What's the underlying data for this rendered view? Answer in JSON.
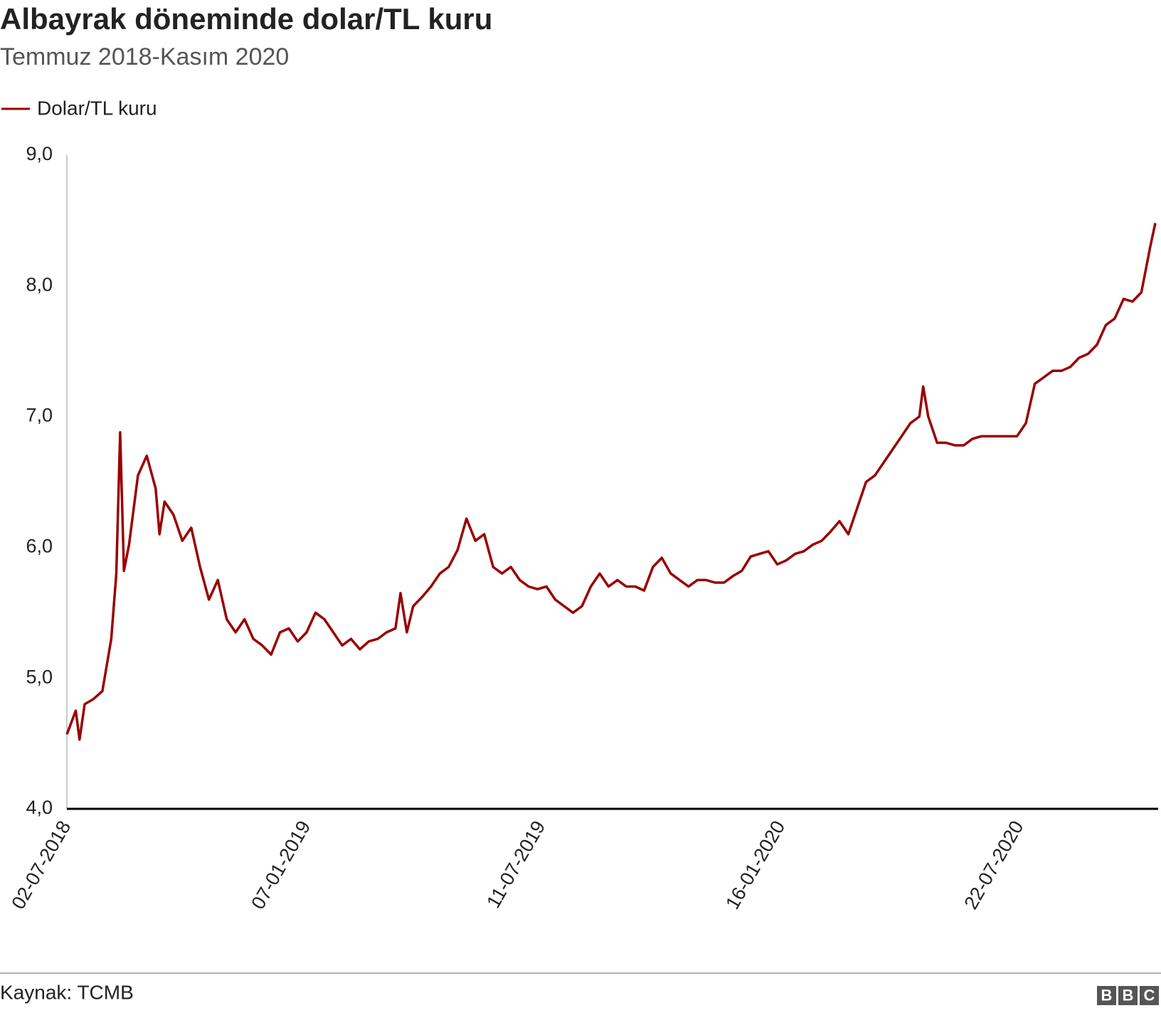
{
  "chart_data": {
    "type": "line",
    "title": "Albayrak döneminde dolar/TL kuru",
    "subtitle": "Temmuz 2018-Kasım 2020",
    "source": "Kaynak: TCMB",
    "logo": [
      "B",
      "B",
      "C"
    ],
    "x": [
      "02-07-2018",
      "09-07-2018",
      "12-07-2018",
      "16-07-2018",
      "23-07-2018",
      "30-07-2018",
      "06-08-2018",
      "10-08-2018",
      "13-08-2018",
      "16-08-2018",
      "20-08-2018",
      "27-08-2018",
      "03-09-2018",
      "10-09-2018",
      "13-09-2018",
      "17-09-2018",
      "24-09-2018",
      "01-10-2018",
      "08-10-2018",
      "15-10-2018",
      "22-10-2018",
      "29-10-2018",
      "05-11-2018",
      "12-11-2018",
      "19-11-2018",
      "26-11-2018",
      "03-12-2018",
      "10-12-2018",
      "17-12-2018",
      "24-12-2018",
      "31-12-2018",
      "07-01-2019",
      "14-01-2019",
      "21-01-2019",
      "28-01-2019",
      "04-02-2019",
      "11-02-2019",
      "18-02-2019",
      "25-02-2019",
      "04-03-2019",
      "11-03-2019",
      "18-03-2019",
      "22-03-2019",
      "27-03-2019",
      "01-04-2019",
      "08-04-2019",
      "15-04-2019",
      "22-04-2019",
      "29-04-2019",
      "06-05-2019",
      "13-05-2019",
      "20-05-2019",
      "27-05-2019",
      "03-06-2019",
      "10-06-2019",
      "17-06-2019",
      "24-06-2019",
      "01-07-2019",
      "08-07-2019",
      "15-07-2019",
      "22-07-2019",
      "29-07-2019",
      "05-08-2019",
      "12-08-2019",
      "19-08-2019",
      "26-08-2019",
      "02-09-2019",
      "09-09-2019",
      "16-09-2019",
      "23-09-2019",
      "30-09-2019",
      "07-10-2019",
      "14-10-2019",
      "21-10-2019",
      "28-10-2019",
      "04-11-2019",
      "11-11-2019",
      "18-11-2019",
      "25-11-2019",
      "02-12-2019",
      "09-12-2019",
      "16-12-2019",
      "23-12-2019",
      "30-12-2019",
      "06-01-2020",
      "13-01-2020",
      "20-01-2020",
      "27-01-2020",
      "03-02-2020",
      "10-02-2020",
      "17-02-2020",
      "24-02-2020",
      "02-03-2020",
      "09-03-2020",
      "16-03-2020",
      "23-03-2020",
      "30-03-2020",
      "06-04-2020",
      "13-04-2020",
      "20-04-2020",
      "27-04-2020",
      "04-05-2020",
      "07-05-2020",
      "11-05-2020",
      "18-05-2020",
      "25-05-2020",
      "01-06-2020",
      "08-06-2020",
      "15-06-2020",
      "22-06-2020",
      "29-06-2020",
      "06-07-2020",
      "13-07-2020",
      "20-07-2020",
      "27-07-2020",
      "03-08-2020",
      "10-08-2020",
      "17-08-2020",
      "24-08-2020",
      "31-08-2020",
      "07-09-2020",
      "14-09-2020",
      "21-09-2020",
      "28-09-2020",
      "05-10-2020",
      "12-10-2020",
      "19-10-2020",
      "26-10-2020",
      "02-11-2020",
      "06-11-2020"
    ],
    "series": [
      {
        "name": "Dolar/TL kuru",
        "color": "#990000",
        "values": [
          4.57,
          4.75,
          4.53,
          4.8,
          4.84,
          4.9,
          5.3,
          5.8,
          6.88,
          5.82,
          6.02,
          6.55,
          6.7,
          6.45,
          6.1,
          6.35,
          6.25,
          6.05,
          6.15,
          5.85,
          5.6,
          5.75,
          5.45,
          5.35,
          5.45,
          5.3,
          5.25,
          5.18,
          5.35,
          5.38,
          5.28,
          5.35,
          5.5,
          5.45,
          5.35,
          5.25,
          5.3,
          5.22,
          5.28,
          5.3,
          5.35,
          5.38,
          5.65,
          5.35,
          5.55,
          5.62,
          5.7,
          5.8,
          5.85,
          5.98,
          6.22,
          6.05,
          6.1,
          5.85,
          5.8,
          5.85,
          5.75,
          5.7,
          5.68,
          5.7,
          5.6,
          5.55,
          5.5,
          5.55,
          5.7,
          5.8,
          5.7,
          5.75,
          5.7,
          5.7,
          5.67,
          5.85,
          5.92,
          5.8,
          5.75,
          5.7,
          5.75,
          5.75,
          5.73,
          5.73,
          5.78,
          5.82,
          5.93,
          5.95,
          5.97,
          5.87,
          5.9,
          5.95,
          5.97,
          6.02,
          6.05,
          6.12,
          6.2,
          6.1,
          6.3,
          6.5,
          6.55,
          6.65,
          6.75,
          6.85,
          6.95,
          7.0,
          7.23,
          7.0,
          6.8,
          6.8,
          6.78,
          6.78,
          6.83,
          6.85,
          6.85,
          6.85,
          6.85,
          6.85,
          6.95,
          7.25,
          7.3,
          7.35,
          7.35,
          7.38,
          7.45,
          7.48,
          7.55,
          7.7,
          7.75,
          7.9,
          7.88,
          7.95,
          8.3,
          8.48
        ]
      }
    ],
    "xlim": [
      "02-07-2018",
      "06-11-2020"
    ],
    "xticks": [
      "02-07-2018",
      "07-01-2019",
      "11-07-2019",
      "16-01-2020",
      "22-07-2020"
    ],
    "ylim": [
      4,
      9
    ],
    "yticks": [
      {
        "value": 4,
        "label": "4,0"
      },
      {
        "value": 5,
        "label": "5,0"
      },
      {
        "value": 6,
        "label": "6,0"
      },
      {
        "value": 7,
        "label": "7,0"
      },
      {
        "value": 8,
        "label": "8,0"
      },
      {
        "value": 9,
        "label": "9,0"
      }
    ]
  }
}
